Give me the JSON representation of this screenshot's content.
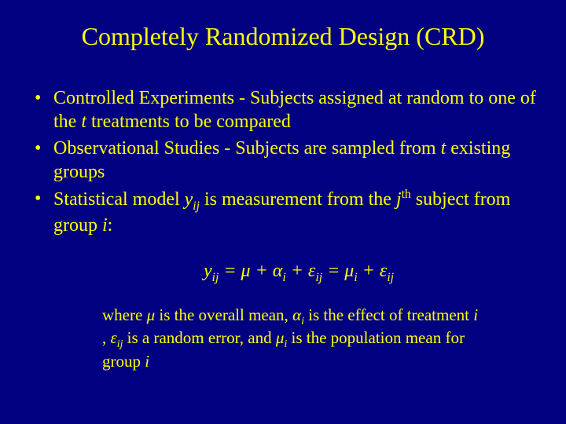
{
  "colors": {
    "background": "#000080",
    "text": "#ffff00"
  },
  "typography": {
    "family": "Times New Roman",
    "title_size": 32,
    "body_size": 24,
    "where_size": 21
  },
  "title": "Completely Randomized Design (CRD)",
  "bullets": [
    {
      "pre": "Controlled Experiments - Subjects assigned at random to one of the ",
      "it1": "t",
      "post": " treatments to be compared"
    },
    {
      "pre": "Observational Studies - Subjects are sampled from ",
      "it1": "t",
      "post": " existing groups"
    },
    {
      "pre": "Statistical model ",
      "it1": "y",
      "sub1": "ij",
      "mid": " is measurement from the ",
      "it2": "j",
      "sup": "th",
      "post": " subject from group ",
      "it3": "i",
      "tail": ":"
    }
  ],
  "equation": {
    "y": "y",
    "ij": "ij",
    "eq1": " = ",
    "mu": "μ",
    "plus1": " + ",
    "alpha": "α",
    "i": "i",
    "plus2": " + ",
    "eps": "ε",
    "eq2": " = ",
    "mu2": "μ",
    "plus3": " + ",
    "eps2": "ε"
  },
  "where": {
    "w1": "where ",
    "mu": "μ",
    "w2": "  is the overall mean, ",
    "alpha": "α",
    "i": "i",
    "w3": " is the effect of treatment ",
    "it_i": "i",
    "w4": " , ",
    "eps": "ε",
    "ij": "ij",
    "w5": " is a random error, and ",
    "mu2": "μ",
    "w6": " is the population mean for group ",
    "it_i2": "i"
  }
}
